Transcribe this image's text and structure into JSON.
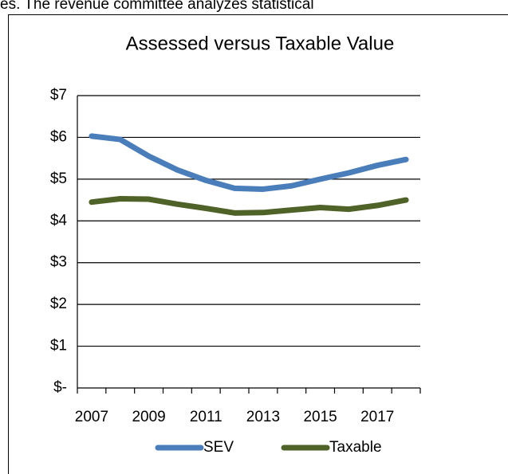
{
  "page_text": "es. The revenue committee analyzes statistical",
  "chart_data": {
    "type": "line",
    "title": "Assessed versus Taxable Value",
    "categories": [
      "2007",
      null,
      "2009",
      null,
      "2011",
      null,
      "2013",
      null,
      "2015",
      null,
      "2017",
      null
    ],
    "series": [
      {
        "name": "SEV",
        "color": "#4a7ebb",
        "values": [
          6.03,
          5.95,
          5.55,
          5.22,
          4.97,
          4.78,
          4.76,
          4.84,
          5.0,
          5.15,
          5.33,
          5.47
        ]
      },
      {
        "name": "Taxable",
        "color": "#4f6228",
        "values": [
          4.45,
          4.53,
          4.52,
          4.4,
          4.3,
          4.19,
          4.2,
          4.26,
          4.32,
          4.28,
          4.37,
          4.5
        ]
      }
    ],
    "ylim": [
      0,
      7
    ],
    "yticks": [
      {
        "value": 0,
        "label": "$-"
      },
      {
        "value": 1,
        "label": "$1"
      },
      {
        "value": 2,
        "label": "$2"
      },
      {
        "value": 3,
        "label": "$3"
      },
      {
        "value": 4,
        "label": "$4"
      },
      {
        "value": 5,
        "label": "$5"
      },
      {
        "value": 6,
        "label": "$6"
      },
      {
        "value": 7,
        "label": "$7"
      }
    ],
    "grid": true,
    "legend": "bottom"
  }
}
